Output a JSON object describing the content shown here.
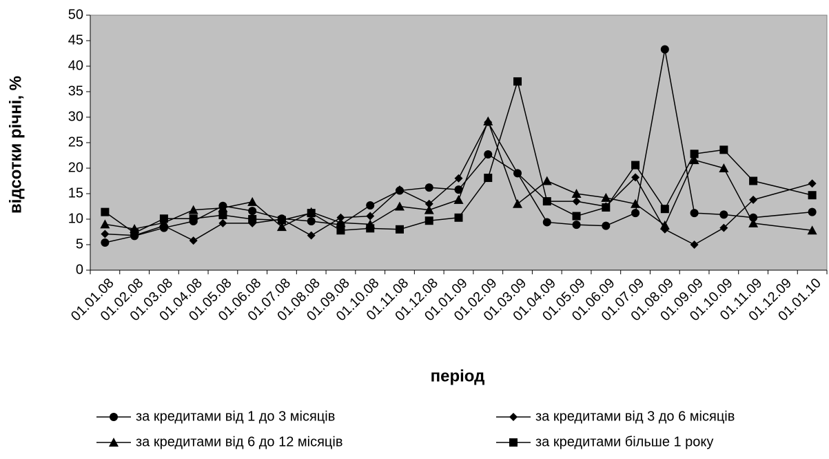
{
  "chart_data": {
    "type": "line",
    "y_label": "відсотки річні, %",
    "x_label": "період",
    "categories": [
      "01.01.08",
      "01.02.08",
      "01.03.08",
      "01.04.08",
      "01.05.08",
      "01.06.08",
      "01.07.08",
      "01.08.08",
      "01.09.08",
      "01.10.08",
      "01.11.08",
      "01.12.08",
      "01.01.09",
      "01.02.09",
      "01.03.09",
      "01.04.09",
      "01.05.09",
      "01.06.09",
      "01.07.09",
      "01.08.09",
      "01.09.09",
      "01.10.09",
      "01.11.09",
      "01.12.09",
      "01.01.10"
    ],
    "series": [
      {
        "name": "за кредитами від 1 до 3 місяців",
        "color": "#000000",
        "marker": "circle",
        "values": [
          5.4,
          6.7,
          8.3,
          9.6,
          12.6,
          11.6,
          10.1,
          9.6,
          8.9,
          12.7,
          15.6,
          16.2,
          15.8,
          22.7,
          19.0,
          9.4,
          8.9,
          8.7,
          11.2,
          43.3,
          11.2,
          10.9,
          10.3,
          null,
          11.4
        ]
      },
      {
        "name": "за кредитами від 3 до 6 місяців",
        "color": "#000000",
        "marker": "diamond",
        "values": [
          7.1,
          6.8,
          8.7,
          5.8,
          9.2,
          9.2,
          10.0,
          6.8,
          10.3,
          10.6,
          15.8,
          13.0,
          18.0,
          29.0,
          19.0,
          13.5,
          13.5,
          12.5,
          18.2,
          8.0,
          5.0,
          8.3,
          13.8,
          null,
          17.0
        ]
      },
      {
        "name": "за кредитами від 6 до 12 місяців",
        "color": "#000000",
        "marker": "triangle",
        "values": [
          9.0,
          8.1,
          9.3,
          11.8,
          12.2,
          13.4,
          8.5,
          11.4,
          9.3,
          9.0,
          12.5,
          11.8,
          13.8,
          29.2,
          13.0,
          17.5,
          15.0,
          14.2,
          13.0,
          8.8,
          21.6,
          20.0,
          9.2,
          null,
          7.8
        ]
      },
      {
        "name": "за кредитами більше 1 року",
        "color": "#000000",
        "marker": "square",
        "values": [
          11.4,
          7.3,
          10.1,
          10.1,
          10.8,
          10.0,
          9.8,
          11.2,
          7.8,
          8.2,
          8.0,
          9.7,
          10.3,
          18.1,
          37.0,
          13.5,
          10.6,
          12.3,
          20.6,
          12.0,
          22.8,
          23.6,
          17.5,
          null,
          14.7
        ]
      }
    ],
    "ylim": [
      0,
      50
    ],
    "yticks": [
      0,
      5,
      10,
      15,
      20,
      25,
      30,
      35,
      40,
      45,
      50
    ],
    "plot_background": "#c0c0c0",
    "legend": "bottom"
  }
}
